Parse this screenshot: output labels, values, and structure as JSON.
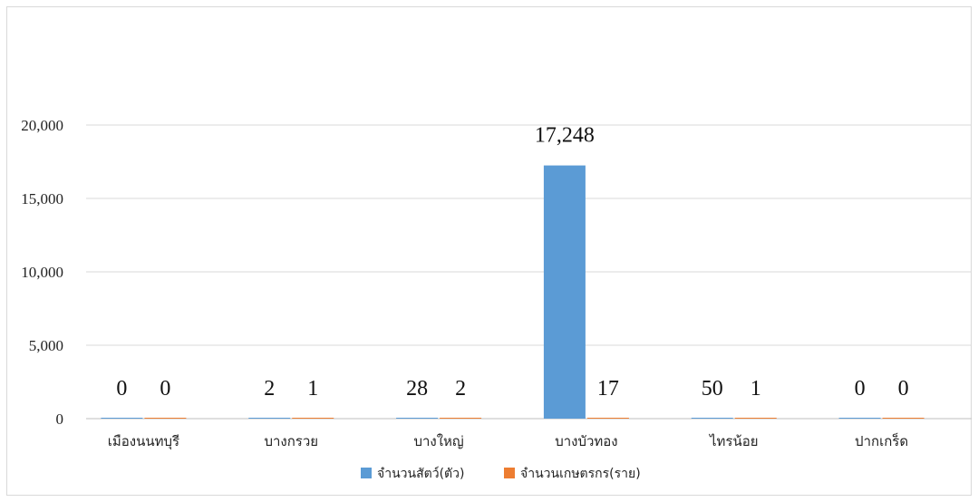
{
  "chart_data": {
    "type": "bar",
    "title": "",
    "xlabel": "",
    "ylabel": "",
    "ylim": [
      0,
      20000
    ],
    "yticks": [
      0,
      5000,
      10000,
      15000,
      20000
    ],
    "ytick_labels": [
      "0",
      "5,000",
      "10,000",
      "15,000",
      "20,000"
    ],
    "grid": true,
    "legend_position": "bottom",
    "categories": [
      "เมืองนนทบุรี",
      "บางกรวย",
      "บางใหญ่",
      "บางบัวทอง",
      "ไทรน้อย",
      "ปากเกร็ด"
    ],
    "series": [
      {
        "name": "จำนวนสัตว์(ตัว)",
        "color": "#5b9bd5",
        "values": [
          0,
          2,
          28,
          17248,
          50,
          0
        ],
        "labels": [
          "0",
          "2",
          "28",
          "17,248",
          "50",
          "0"
        ]
      },
      {
        "name": "จำนวนเกษตรกร(ราย)",
        "color": "#ed7d31",
        "values": [
          0,
          1,
          2,
          17,
          1,
          0
        ],
        "labels": [
          "0",
          "1",
          "2",
          "17",
          "1",
          "0"
        ]
      }
    ]
  }
}
